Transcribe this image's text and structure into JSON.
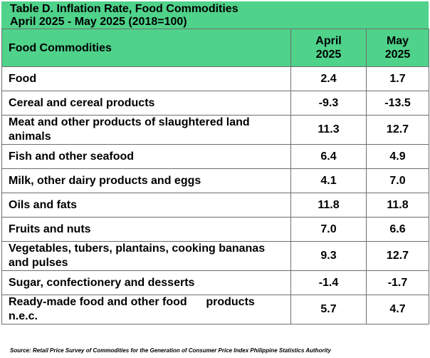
{
  "title": {
    "line1": "Table D.  Inflation Rate, Food Commodities",
    "line2": "April 2025 - May 2025 (2018=100)"
  },
  "header": {
    "commodity": "Food Commodities",
    "col1_line1": "April",
    "col1_line2": "2025",
    "col2_line1": "May",
    "col2_line2": "2025"
  },
  "rows": [
    {
      "name": "Food",
      "april": "2.4",
      "may": "1.7"
    },
    {
      "name": "Cereal and cereal products",
      "april": "-9.3",
      "may": "-13.5"
    },
    {
      "name": "Meat and other products of slaughtered land animals",
      "april": "11.3",
      "may": "12.7"
    },
    {
      "name": "Fish and other seafood",
      "april": "6.4",
      "may": "4.9"
    },
    {
      "name": "Milk, other dairy products and eggs",
      "april": "4.1",
      "may": "7.0"
    },
    {
      "name": "Oils and fats",
      "april": "11.8",
      "may": "11.8"
    },
    {
      "name": "Fruits and nuts",
      "april": "7.0",
      "may": "6.6"
    },
    {
      "name": "Vegetables, tubers, plantains, cooking bananas and pulses",
      "april": "9.3",
      "may": "12.7"
    },
    {
      "name": "Sugar, confectionery and desserts",
      "april": "-1.4",
      "may": "-1.7"
    },
    {
      "name": "Ready-made food and other food      products n.e.c.",
      "april": "5.7",
      "may": "4.7"
    }
  ],
  "source": "Source: Retail Price Survey of Commodities for the Generation of Consumer Price Index Philippine Statistics Authority",
  "colors": {
    "header_green": "#4fd28a",
    "border": "#6e6e6e"
  }
}
